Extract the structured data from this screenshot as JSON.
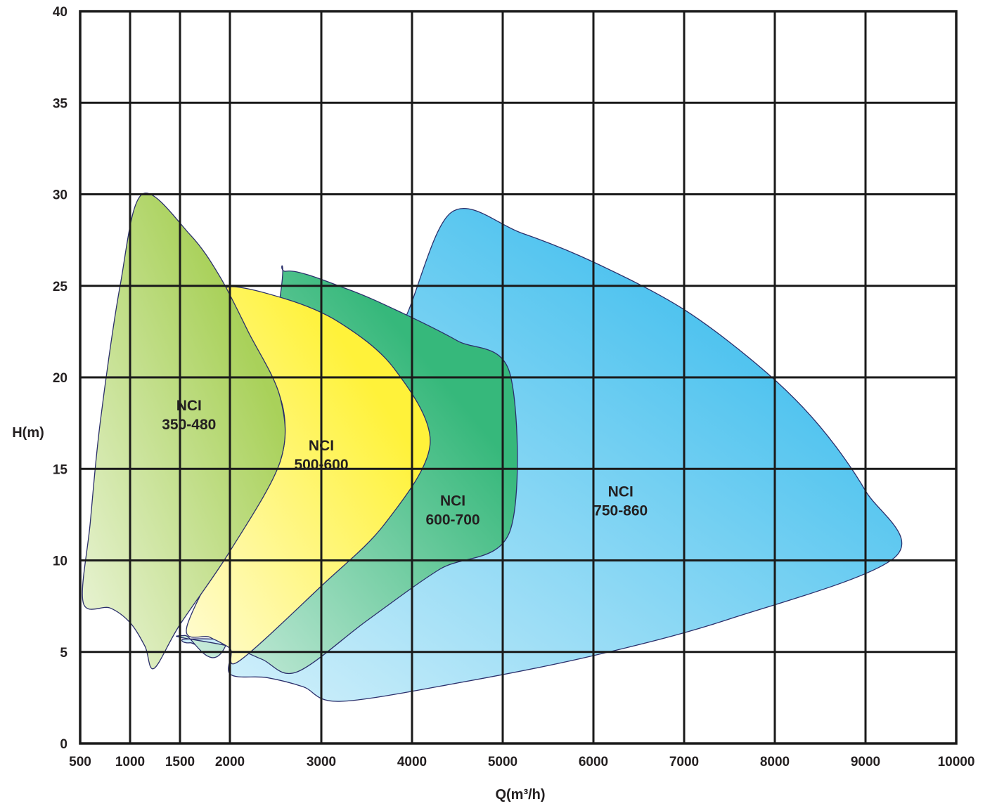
{
  "chart_data": {
    "type": "area",
    "title": "",
    "xlabel": "Q(m³/h)",
    "ylabel": "H(m)",
    "x_ticks": [
      500,
      1000,
      1500,
      2000,
      3000,
      4000,
      5000,
      6000,
      7000,
      8000,
      9000,
      10000
    ],
    "y_ticks": [
      0,
      5,
      10,
      15,
      20,
      25,
      30,
      35,
      40
    ],
    "xlim": [
      500,
      10000
    ],
    "ylim": [
      0,
      40
    ],
    "grid": true,
    "legend": "none",
    "series": [
      {
        "name": "NCI\n750-860",
        "color": "#4fc3ef",
        "label_at": [
          6300,
          13.5
        ],
        "boundary": [
          [
            2000,
            3.8
          ],
          [
            2400,
            3.6
          ],
          [
            2800,
            3.1
          ],
          [
            3200,
            2.3
          ],
          [
            4500,
            3.3
          ],
          [
            6000,
            4.8
          ],
          [
            7500,
            6.8
          ],
          [
            9330,
            10.2
          ],
          [
            9000,
            13.8
          ],
          [
            8500,
            17.3
          ],
          [
            7900,
            20.3
          ],
          [
            7000,
            23.7
          ],
          [
            6000,
            26.3
          ],
          [
            5200,
            27.9
          ],
          [
            4430,
            29.0
          ],
          [
            3900,
            23.0
          ],
          [
            3500,
            21.0
          ],
          [
            3200,
            20.0
          ],
          [
            3000,
            19.0
          ],
          [
            2600,
            17.0
          ],
          [
            2000,
            6.0
          ],
          [
            1600,
            5.5
          ],
          [
            1550,
            5.7
          ],
          [
            2000,
            5.5
          ]
        ]
      },
      {
        "name": "NCI\n600-700",
        "color": "#36b87b",
        "label_at": [
          4450,
          13.0
        ],
        "boundary": [
          [
            1500,
            5.8
          ],
          [
            2000,
            5.3
          ],
          [
            2350,
            4.6
          ],
          [
            2730,
            3.9
          ],
          [
            3500,
            6.7
          ],
          [
            4300,
            9.5
          ],
          [
            5080,
            11.6
          ],
          [
            5080,
            20.2
          ],
          [
            4500,
            22.0
          ],
          [
            3900,
            23.5
          ],
          [
            3300,
            24.8
          ],
          [
            2620,
            25.8
          ],
          [
            2540,
            24.1
          ],
          [
            2000,
            6.0
          ],
          [
            1550,
            5.9
          ]
        ]
      },
      {
        "name": "NCI\n500-600",
        "color": "#fff23a",
        "label_at": [
          3000,
          16.0
        ],
        "boundary": [
          [
            1570,
            6.4
          ],
          [
            1800,
            5.8
          ],
          [
            2000,
            5.2
          ],
          [
            2100,
            4.5
          ],
          [
            3000,
            8.6
          ],
          [
            3700,
            12.0
          ],
          [
            4200,
            16.4
          ],
          [
            3800,
            20.5
          ],
          [
            3200,
            23.0
          ],
          [
            2600,
            24.3
          ],
          [
            1960,
            24.9
          ],
          [
            2050,
            23.0
          ],
          [
            2100,
            22.0
          ],
          [
            2550,
            18.9
          ],
          [
            2550,
            15.4
          ],
          [
            2100,
            12.0
          ]
        ]
      },
      {
        "name": "NCI\n350-480",
        "color": "#a9d15a",
        "label_at": [
          1590,
          18.2
        ],
        "boundary": [
          [
            530,
            7.7
          ],
          [
            800,
            7.4
          ],
          [
            1000,
            6.6
          ],
          [
            1150,
            5.3
          ],
          [
            1240,
            4.1
          ],
          [
            1500,
            6.5
          ],
          [
            2000,
            10.5
          ],
          [
            2550,
            15.4
          ],
          [
            2550,
            18.9
          ],
          [
            2200,
            22.5
          ],
          [
            1900,
            25.5
          ],
          [
            1600,
            27.8
          ],
          [
            1120,
            30.0
          ],
          [
            900,
            25.0
          ],
          [
            700,
            17.5
          ],
          [
            600,
            12.0
          ]
        ]
      }
    ]
  }
}
